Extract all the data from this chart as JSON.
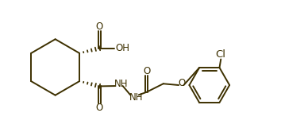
{
  "bg_color": "#ffffff",
  "line_color": "#3d3000",
  "line_width": 1.4,
  "font_size": 8.5,
  "fig_width": 3.54,
  "fig_height": 1.76,
  "dpi": 100,
  "xlim": [
    0,
    10
  ],
  "ylim": [
    0,
    5
  ]
}
